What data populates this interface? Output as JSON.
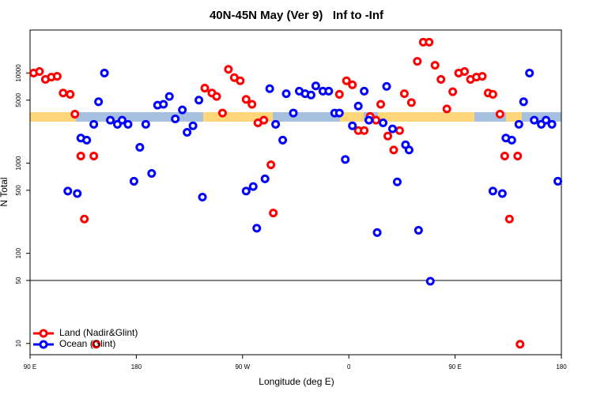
{
  "chart_data": {
    "type": "scatter",
    "title": "40N-45N May (Ver 9)   Inf to -Inf",
    "x_label": "Longitude (deg E)",
    "y_label": "N Total",
    "xlim": [
      90,
      540
    ],
    "xticks": [
      {
        "value": 90,
        "label": "90 E"
      },
      180,
      {
        "value": 270,
        "label": "90 W"
      },
      {
        "value": 360,
        "label": "0"
      },
      {
        "value": 450,
        "label": "90 E"
      },
      {
        "value": 540,
        "label": "180"
      }
    ],
    "ylim": [
      7.5,
      30000
    ],
    "y_log": true,
    "yticks": [
      10,
      50,
      100,
      500,
      1000,
      5000,
      10000
    ],
    "reference_line": 50,
    "legend": "bottom-left",
    "series": [
      {
        "name": "Land (Nadir&Glint)",
        "color": "#ff0000",
        "x": [
          93,
          98,
          103,
          108,
          113,
          118,
          124,
          128,
          133,
          136,
          144,
          146,
          238,
          244,
          248,
          253,
          258,
          263,
          268,
          273,
          278,
          283,
          288,
          294,
          296,
          352,
          358,
          363,
          368,
          373,
          378,
          383,
          387,
          393,
          398,
          403,
          407,
          413,
          418,
          423,
          428,
          433,
          438,
          443,
          448,
          453,
          458,
          463,
          468,
          473,
          478,
          482,
          488,
          492,
          496,
          503,
          505
        ],
        "values": [
          10000,
          10400,
          8500,
          9000,
          9200,
          6000,
          5800,
          3500,
          1200,
          240,
          1200,
          9.8,
          6800,
          6000,
          5500,
          3600,
          11000,
          8900,
          8200,
          5100,
          4500,
          2800,
          3000,
          960,
          280,
          5800,
          8200,
          7400,
          2300,
          2300,
          3300,
          3000,
          4500,
          2000,
          1400,
          2300,
          5900,
          4700,
          13500,
          22000,
          22000,
          12200,
          8500,
          4000,
          6200,
          10000,
          10400,
          8500,
          9000,
          9200,
          6000,
          5800,
          3500,
          1200,
          240,
          1200,
          9.8
        ]
      },
      {
        "name": "Ocean (Glint)",
        "color": "#0000ff",
        "x": [
          122,
          130,
          133,
          138,
          144,
          148,
          153,
          158,
          164,
          168,
          173,
          178,
          183,
          188,
          193,
          198,
          203,
          208,
          213,
          219,
          223,
          228,
          233,
          236,
          273,
          279,
          282,
          289,
          293,
          298,
          304,
          307,
          313,
          318,
          323,
          328,
          332,
          338,
          343,
          348,
          352,
          357,
          363,
          368,
          373,
          377,
          384,
          389,
          392,
          397,
          401,
          408,
          411,
          419,
          429,
          482,
          490,
          493,
          498,
          504,
          508,
          513,
          517,
          523,
          527,
          532,
          537
        ],
        "values": [
          490,
          460,
          1900,
          1800,
          2700,
          4800,
          10000,
          3000,
          2700,
          3000,
          2700,
          630,
          1500,
          2700,
          770,
          4400,
          4500,
          5500,
          3100,
          3900,
          2200,
          2600,
          5000,
          420,
          490,
          550,
          190,
          670,
          6700,
          2700,
          1800,
          5900,
          3600,
          6300,
          5900,
          5700,
          7200,
          6300,
          6300,
          3600,
          3600,
          1100,
          2600,
          4300,
          6300,
          3000,
          170,
          2800,
          7100,
          2400,
          620,
          1600,
          1400,
          180,
          49,
          490,
          460,
          1900,
          1800,
          2700,
          4800,
          10000,
          3000,
          2700,
          3000,
          2700,
          630
        ]
      }
    ]
  }
}
